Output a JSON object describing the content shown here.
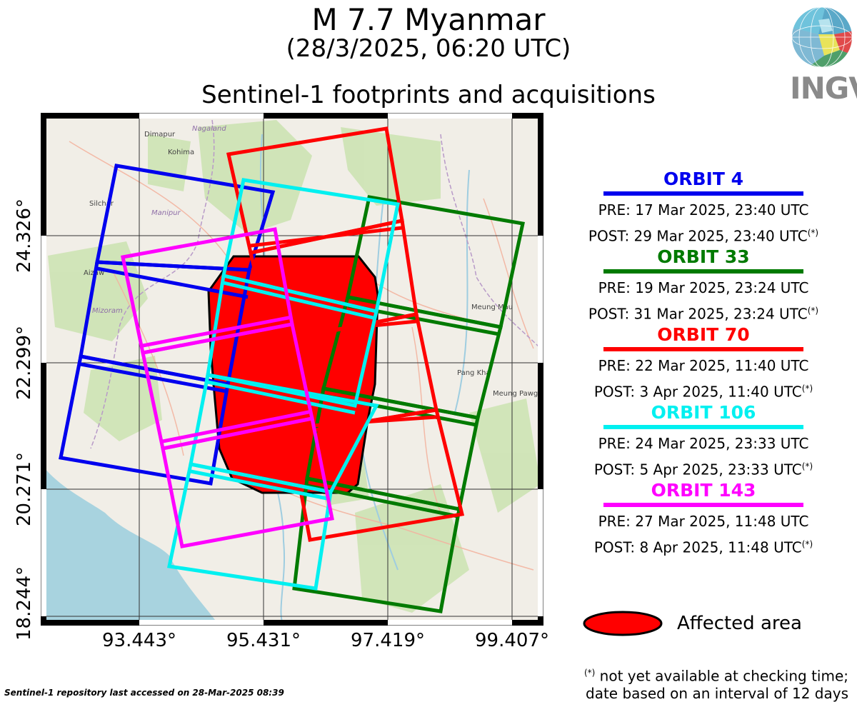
{
  "title": "M 7.7 Myanmar",
  "subtitle": "(28/3/2025, 06:20 UTC)",
  "map_title": "Sentinel-1 footprints and acquisitions",
  "logo_text": "INGV",
  "map": {
    "latitude_labels": [
      "24.326°",
      "22.299°",
      "20.271°",
      "18.244°"
    ],
    "longitude_labels": [
      "93.443°",
      "95.431°",
      "97.419°",
      "99.407°"
    ]
  },
  "orbits": [
    {
      "name": "ORBIT 4",
      "color": "#0000ee",
      "pre": "PRE: 17 Mar 2025, 23:40 UTC",
      "post": "POST: 29 Mar 2025, 23:40 UTC",
      "post_note": "(*)"
    },
    {
      "name": "ORBIT 33",
      "color": "#007a00",
      "pre": "PRE: 19 Mar 2025, 23:24 UTC",
      "post": "POST: 31 Mar 2025, 23:24 UTC",
      "post_note": "(*)"
    },
    {
      "name": "ORBIT 70",
      "color": "#ff0000",
      "pre": "PRE: 22 Mar 2025, 11:40 UTC",
      "post": "POST: 3 Apr 2025, 11:40 UTC",
      "post_note": "(*)"
    },
    {
      "name": "ORBIT 106",
      "color": "#00f0f0",
      "pre": "PRE: 24 Mar 2025, 23:33 UTC",
      "post": "POST: 5 Apr 2025, 23:33 UTC",
      "post_note": "(*)"
    },
    {
      "name": "ORBIT 143",
      "color": "#ff00ff",
      "pre": "PRE: 27 Mar 2025, 11:48 UTC",
      "post": "POST: 8 Apr 2025, 11:48 UTC",
      "post_note": "(*)"
    }
  ],
  "affected_area": {
    "label": "Affected area",
    "color": "#ff0000"
  },
  "footnote": {
    "marker": "(*)",
    "line1": " not yet available at checking time;",
    "line2": "date based on an interval of 12 days"
  },
  "access_note": "Sentinel-1 repository last accessed on 28-Mar-2025 08:39",
  "map_labels": {
    "dimapur": "Dimapur",
    "nagaland": "Nagaland",
    "kohima": "Kohima",
    "manipur": "Manipur",
    "silchar": "Silchar",
    "aizawl": "Aizaw",
    "mizoram": "Mizoram",
    "meung_mau": "Meung Mau",
    "pang_kha": "Pang Kha",
    "meung_pawg": "Meung Pawg"
  }
}
